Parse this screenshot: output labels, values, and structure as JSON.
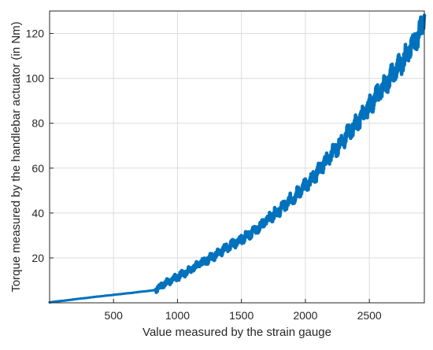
{
  "chart_data": {
    "type": "scatter",
    "xlabel": "Value measured by the strain gauge",
    "ylabel": "Torque measured by the handlebar actuator (in Nm)",
    "xlim": [
      0,
      2930
    ],
    "ylim": [
      0,
      130
    ],
    "xticks": [
      500,
      1000,
      1500,
      2000,
      2500
    ],
    "yticks": [
      20,
      40,
      60,
      80,
      100,
      120
    ],
    "grid": true,
    "series_color": "#0072BD",
    "low_segment": {
      "x": [
        0,
        40,
        80,
        120,
        160,
        200,
        240,
        280,
        320,
        360,
        400,
        440,
        480,
        520,
        560,
        600,
        640,
        680,
        720,
        760,
        800,
        830
      ],
      "y": [
        0.2,
        0.5,
        0.8,
        1.0,
        1.3,
        1.6,
        1.9,
        2.1,
        2.4,
        2.7,
        2.9,
        3.2,
        3.4,
        3.7,
        3.9,
        4.2,
        4.4,
        4.7,
        5.0,
        5.2,
        5.5,
        5.7
      ]
    },
    "main_series": {
      "x": [
        830,
        900,
        1000,
        1100,
        1200,
        1300,
        1400,
        1500,
        1600,
        1700,
        1800,
        1900,
        2000,
        2100,
        2200,
        2300,
        2400,
        2500,
        2600,
        2700,
        2800,
        2900,
        2930
      ],
      "y": [
        6,
        8.5,
        11.5,
        15,
        18,
        21.5,
        25,
        28.5,
        32,
        37,
        41.5,
        46.5,
        52,
        58.5,
        66,
        73,
        80,
        87.5,
        95.5,
        103,
        111,
        121,
        128
      ]
    }
  }
}
